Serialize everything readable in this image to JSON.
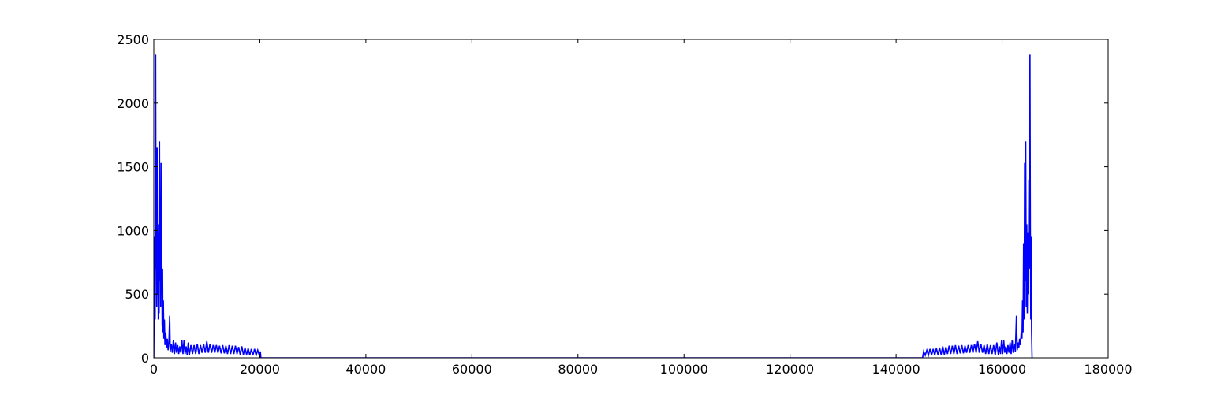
{
  "chart_data": {
    "type": "line",
    "title": "",
    "xlabel": "",
    "ylabel": "",
    "xlim": [
      0,
      180000
    ],
    "ylim": [
      0,
      2500
    ],
    "x_ticks": [
      0,
      20000,
      40000,
      60000,
      80000,
      100000,
      120000,
      140000,
      160000,
      180000
    ],
    "x_tick_labels": [
      "0",
      "20000",
      "40000",
      "60000",
      "80000",
      "100000",
      "120000",
      "140000",
      "160000",
      "180000"
    ],
    "y_ticks": [
      0,
      500,
      1000,
      1500,
      2000,
      2500
    ],
    "y_tick_labels": [
      "0",
      "500",
      "1000",
      "1500",
      "2000",
      "2500"
    ],
    "grid": false,
    "legend": "none",
    "line_color": "#0000ff",
    "series": [
      {
        "points": [
          [
            0,
            0
          ],
          [
            150,
            950
          ],
          [
            250,
            300
          ],
          [
            300,
            1020
          ],
          [
            350,
            2380
          ],
          [
            420,
            700
          ],
          [
            480,
            1400
          ],
          [
            550,
            400
          ],
          [
            620,
            1650
          ],
          [
            700,
            500
          ],
          [
            780,
            980
          ],
          [
            850,
            300
          ],
          [
            920,
            1050
          ],
          [
            1000,
            350
          ],
          [
            1080,
            1700
          ],
          [
            1150,
            600
          ],
          [
            1220,
            1200
          ],
          [
            1300,
            400
          ],
          [
            1360,
            1530
          ],
          [
            1430,
            500
          ],
          [
            1500,
            900
          ],
          [
            1580,
            250
          ],
          [
            1650,
            700
          ],
          [
            1720,
            200
          ],
          [
            1800,
            450
          ],
          [
            1900,
            150
          ],
          [
            2000,
            300
          ],
          [
            2100,
            100
          ],
          [
            2250,
            200
          ],
          [
            2400,
            80
          ],
          [
            2550,
            150
          ],
          [
            2700,
            60
          ],
          [
            2850,
            120
          ],
          [
            3000,
            330
          ],
          [
            3100,
            50
          ],
          [
            3300,
            110
          ],
          [
            3500,
            40
          ],
          [
            3700,
            140
          ],
          [
            3900,
            30
          ],
          [
            4100,
            120
          ],
          [
            4300,
            40
          ],
          [
            4500,
            100
          ],
          [
            4700,
            30
          ],
          [
            4900,
            90
          ],
          [
            5100,
            40
          ],
          [
            5300,
            140
          ],
          [
            5500,
            30
          ],
          [
            5700,
            140
          ],
          [
            5900,
            30
          ],
          [
            6100,
            90
          ],
          [
            6300,
            20
          ],
          [
            6500,
            120
          ],
          [
            6700,
            20
          ],
          [
            7000,
            100
          ],
          [
            7300,
            30
          ],
          [
            7600,
            100
          ],
          [
            7900,
            30
          ],
          [
            8200,
            110
          ],
          [
            8500,
            30
          ],
          [
            8800,
            100
          ],
          [
            9100,
            40
          ],
          [
            9400,
            110
          ],
          [
            9700,
            40
          ],
          [
            10000,
            130
          ],
          [
            10300,
            40
          ],
          [
            10600,
            110
          ],
          [
            10900,
            40
          ],
          [
            11200,
            100
          ],
          [
            11500,
            40
          ],
          [
            11800,
            100
          ],
          [
            12100,
            40
          ],
          [
            12400,
            95
          ],
          [
            12700,
            35
          ],
          [
            13000,
            100
          ],
          [
            13300,
            35
          ],
          [
            13600,
            95
          ],
          [
            13900,
            30
          ],
          [
            14200,
            100
          ],
          [
            14500,
            30
          ],
          [
            14800,
            95
          ],
          [
            15100,
            30
          ],
          [
            15400,
            95
          ],
          [
            15700,
            30
          ],
          [
            16000,
            85
          ],
          [
            16300,
            25
          ],
          [
            16600,
            90
          ],
          [
            16900,
            25
          ],
          [
            17200,
            80
          ],
          [
            17500,
            25
          ],
          [
            17800,
            75
          ],
          [
            18100,
            20
          ],
          [
            18400,
            70
          ],
          [
            18700,
            20
          ],
          [
            19000,
            70
          ],
          [
            19300,
            20
          ],
          [
            19600,
            60
          ],
          [
            19900,
            20
          ],
          [
            20100,
            50
          ],
          [
            20200,
            0
          ],
          [
            145000,
            0
          ],
          [
            145200,
            50
          ],
          [
            145500,
            20
          ],
          [
            145800,
            60
          ],
          [
            146100,
            20
          ],
          [
            146400,
            70
          ],
          [
            146700,
            20
          ],
          [
            147000,
            70
          ],
          [
            147300,
            20
          ],
          [
            147600,
            75
          ],
          [
            147900,
            25
          ],
          [
            148200,
            80
          ],
          [
            148500,
            25
          ],
          [
            148800,
            90
          ],
          [
            149100,
            25
          ],
          [
            149400,
            85
          ],
          [
            149700,
            30
          ],
          [
            150000,
            95
          ],
          [
            150300,
            30
          ],
          [
            150600,
            95
          ],
          [
            150900,
            30
          ],
          [
            151200,
            100
          ],
          [
            151500,
            30
          ],
          [
            151800,
            95
          ],
          [
            152100,
            35
          ],
          [
            152400,
            100
          ],
          [
            152700,
            35
          ],
          [
            153000,
            95
          ],
          [
            153300,
            40
          ],
          [
            153600,
            100
          ],
          [
            153900,
            40
          ],
          [
            154200,
            100
          ],
          [
            154500,
            40
          ],
          [
            154800,
            110
          ],
          [
            155100,
            40
          ],
          [
            155400,
            130
          ],
          [
            155700,
            40
          ],
          [
            156000,
            110
          ],
          [
            156300,
            40
          ],
          [
            156600,
            100
          ],
          [
            156900,
            30
          ],
          [
            157200,
            110
          ],
          [
            157500,
            30
          ],
          [
            157800,
            100
          ],
          [
            158100,
            30
          ],
          [
            158400,
            100
          ],
          [
            158700,
            20
          ],
          [
            159000,
            120
          ],
          [
            159300,
            20
          ],
          [
            159500,
            90
          ],
          [
            159700,
            30
          ],
          [
            159900,
            140
          ],
          [
            160100,
            30
          ],
          [
            160300,
            140
          ],
          [
            160500,
            40
          ],
          [
            160700,
            90
          ],
          [
            160900,
            30
          ],
          [
            161100,
            100
          ],
          [
            161300,
            40
          ],
          [
            161500,
            120
          ],
          [
            161700,
            30
          ],
          [
            161900,
            140
          ],
          [
            162100,
            40
          ],
          [
            162300,
            110
          ],
          [
            162500,
            50
          ],
          [
            162700,
            330
          ],
          [
            162850,
            60
          ],
          [
            163000,
            120
          ],
          [
            163150,
            80
          ],
          [
            163300,
            150
          ],
          [
            163450,
            100
          ],
          [
            163600,
            200
          ],
          [
            163750,
            150
          ],
          [
            163850,
            450
          ],
          [
            163950,
            200
          ],
          [
            164050,
            900
          ],
          [
            164150,
            300
          ],
          [
            164250,
            1530
          ],
          [
            164350,
            600
          ],
          [
            164450,
            1700
          ],
          [
            164550,
            400
          ],
          [
            164650,
            1050
          ],
          [
            164750,
            350
          ],
          [
            164850,
            980
          ],
          [
            164950,
            500
          ],
          [
            165050,
            1400
          ],
          [
            165150,
            700
          ],
          [
            165250,
            2380
          ],
          [
            165330,
            1020
          ],
          [
            165400,
            300
          ],
          [
            165480,
            950
          ],
          [
            165560,
            200
          ],
          [
            165650,
            0
          ]
        ]
      }
    ]
  }
}
